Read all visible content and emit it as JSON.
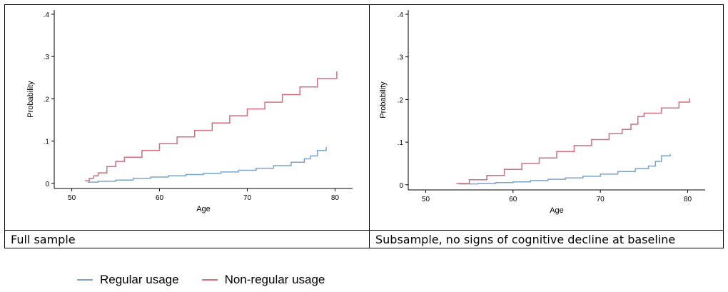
{
  "panels": [
    {
      "caption": "Full sample",
      "chart_data": {
        "type": "line",
        "title": "",
        "xlabel": "Age",
        "ylabel": "Probability",
        "xlim": [
          48,
          82
        ],
        "ylim": [
          -0.012,
          0.41
        ],
        "xticks": [
          50,
          60,
          70,
          80
        ],
        "xtick_labels": [
          "50",
          "60",
          "70",
          "80"
        ],
        "yticks": [
          0,
          0.1,
          0.2,
          0.3,
          0.4
        ],
        "ytick_labels": [
          "0",
          ".1",
          ".2",
          ".3",
          ".4"
        ],
        "grid": false,
        "series": [
          {
            "name": "Regular usage",
            "color": "#7ba3c9",
            "x": [
              51.8,
              53,
              55,
              57,
              59,
              61,
              63,
              65,
              67,
              69,
              71,
              73,
              75,
              76.5,
              77.2,
              78,
              79
            ],
            "y": [
              0.003,
              0.005,
              0.008,
              0.012,
              0.015,
              0.018,
              0.021,
              0.024,
              0.027,
              0.031,
              0.036,
              0.042,
              0.05,
              0.058,
              0.065,
              0.078,
              0.086
            ]
          },
          {
            "name": "Non-regular usage",
            "color": "#d26f7f",
            "x": [
              51.5,
              52,
              52.5,
              53,
              54,
              55,
              56,
              58,
              60,
              62,
              64,
              66,
              68,
              70,
              72,
              74,
              76,
              78,
              80.2
            ],
            "y": [
              0.006,
              0.012,
              0.018,
              0.025,
              0.04,
              0.052,
              0.062,
              0.078,
              0.094,
              0.11,
              0.125,
              0.143,
              0.16,
              0.176,
              0.192,
              0.21,
              0.228,
              0.248,
              0.265
            ]
          }
        ]
      }
    },
    {
      "caption": "Subsample, no signs of cognitive decline at baseline",
      "chart_data": {
        "type": "line",
        "title": "",
        "xlabel": "Age",
        "ylabel": "Probability",
        "xlim": [
          48,
          82
        ],
        "ylim": [
          -0.012,
          0.41
        ],
        "xticks": [
          50,
          60,
          70,
          80
        ],
        "xtick_labels": [
          "50",
          "60",
          "70",
          "80"
        ],
        "yticks": [
          0,
          0.1,
          0.2,
          0.3,
          0.4
        ],
        "ytick_labels": [
          "0",
          ".1",
          ".2",
          ".3",
          ".4"
        ],
        "grid": false,
        "series": [
          {
            "name": "Regular usage",
            "color": "#7ba3c9",
            "x": [
              53.8,
              56,
              58,
              60,
              62,
              64,
              66,
              68,
              70,
              72,
              74,
              75.5,
              76.3,
              77,
              78
            ],
            "y": [
              0.002,
              0.003,
              0.005,
              0.007,
              0.01,
              0.013,
              0.016,
              0.02,
              0.025,
              0.031,
              0.038,
              0.044,
              0.055,
              0.068,
              0.072
            ]
          },
          {
            "name": "Non-regular usage",
            "color": "#d26f7f",
            "x": [
              53.5,
              55,
              57,
              59,
              61,
              63,
              65,
              67,
              69,
              71,
              72.5,
              73.5,
              74.3,
              75,
              77,
              79,
              80.2
            ],
            "y": [
              0.003,
              0.012,
              0.022,
              0.036,
              0.05,
              0.063,
              0.078,
              0.092,
              0.106,
              0.12,
              0.13,
              0.142,
              0.16,
              0.168,
              0.18,
              0.194,
              0.203
            ]
          }
        ]
      }
    }
  ],
  "legend": [
    {
      "label": "Regular usage",
      "color": "#7ba3c9"
    },
    {
      "label": "Non-regular usage",
      "color": "#d26f7f"
    }
  ]
}
